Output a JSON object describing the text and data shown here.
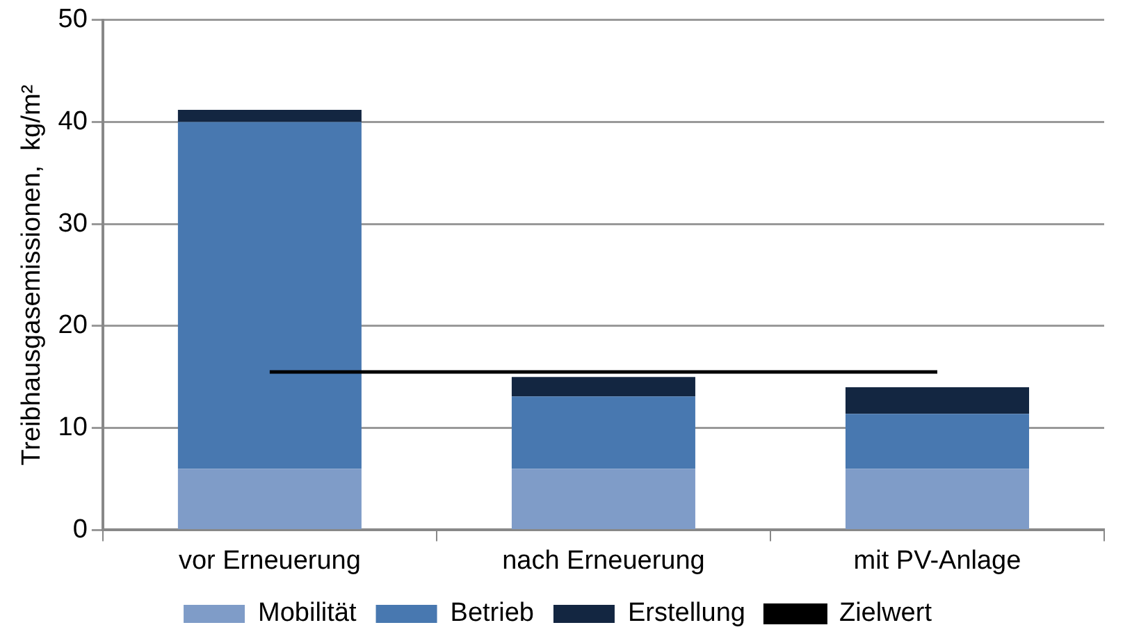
{
  "chart_data": {
    "type": "bar",
    "stacked": true,
    "ylabel": "Treibhausgasemissionen,  kg/m²",
    "categories": [
      "vor Erneuerung",
      "nach Erneuerung",
      "mit PV-Anlage"
    ],
    "series": [
      {
        "name": "Mobilität",
        "color": "#7f9cc8",
        "values": [
          6.0,
          6.0,
          6.0
        ]
      },
      {
        "name": "Betrieb",
        "color": "#4878b0",
        "values": [
          34.0,
          7.1,
          5.4
        ]
      },
      {
        "name": "Erstellung",
        "color": "#132641",
        "values": [
          1.2,
          1.9,
          2.6
        ]
      },
      {
        "name": "Zielwert",
        "type": "line",
        "color": "#000000",
        "values": [
          15.5,
          15.5,
          15.5
        ]
      }
    ],
    "ylim": [
      0,
      50
    ],
    "yticks": [
      0,
      10,
      20,
      30,
      40,
      50
    ],
    "grid": "y",
    "legend": "bottom",
    "marker": "none"
  }
}
